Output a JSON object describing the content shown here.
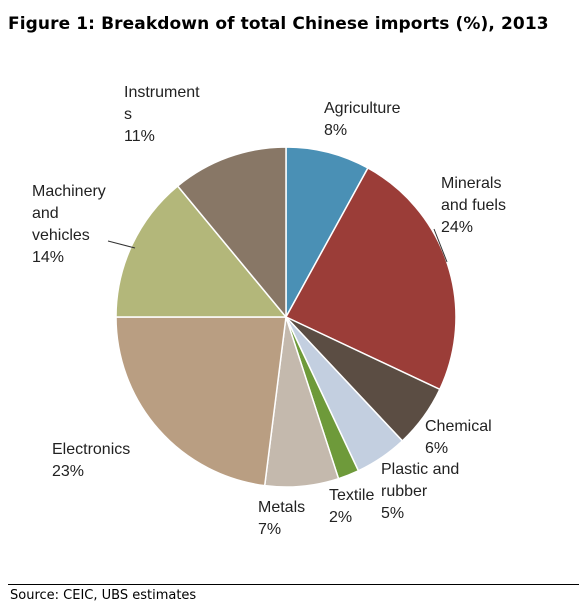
{
  "figure": {
    "number": "Figure 1:",
    "title": "Breakdown of total Chinese imports (%), 2013"
  },
  "source": "Source:  CEIC, UBS estimates",
  "chart_data": {
    "type": "pie",
    "title": "Breakdown of total Chinese imports (%), 2013",
    "start": "12 o'clock, clockwise",
    "slices": [
      {
        "name": "Agriculture",
        "label_lines": [
          "Agriculture",
          "8%"
        ],
        "value": 8,
        "color": "#4a90b5"
      },
      {
        "name": "Minerals and fuels",
        "label_lines": [
          "Minerals",
          "and fuels",
          "24%"
        ],
        "value": 24,
        "color": "#9b3d38"
      },
      {
        "name": "Chemical",
        "label_lines": [
          "Chemical",
          "6%"
        ],
        "value": 6,
        "color": "#5b4d43"
      },
      {
        "name": "Plastic and rubber",
        "label_lines": [
          "Plastic and",
          "rubber",
          "5%"
        ],
        "value": 5,
        "color": "#c3cfe0"
      },
      {
        "name": "Textile",
        "label_lines": [
          "Textile",
          "2%"
        ],
        "value": 2,
        "color": "#6e9a3a"
      },
      {
        "name": "Metals",
        "label_lines": [
          "Metals",
          "7%"
        ],
        "value": 7,
        "color": "#c4b9ad"
      },
      {
        "name": "Electronics",
        "label_lines": [
          "Electronics",
          "23%"
        ],
        "value": 23,
        "color": "#b99e82"
      },
      {
        "name": "Machinery and vehicles",
        "label_lines": [
          "Machinery",
          "and",
          "vehicles",
          "14%"
        ],
        "value": 14,
        "color": "#b3b77a"
      },
      {
        "name": "Instruments",
        "label_lines": [
          "Instrument",
          "s",
          "11%"
        ],
        "value": 11,
        "color": "#887766"
      }
    ]
  }
}
